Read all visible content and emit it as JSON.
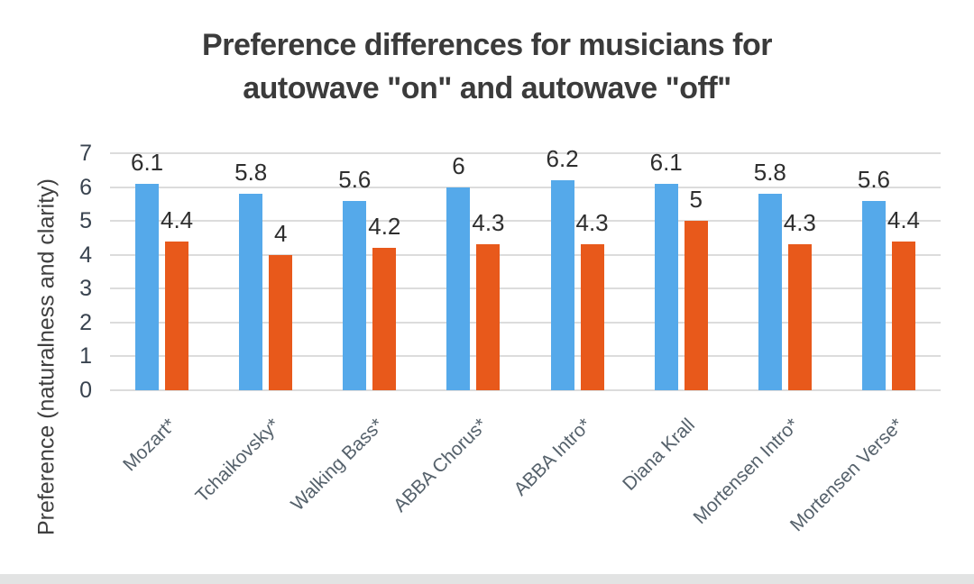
{
  "chart_title": {
    "line1": "Preference differences for musicians for",
    "line2": "autowave \"on\" and autowave \"off\""
  },
  "y_axis_label": "Preference (naturalness and clarity)",
  "chart_data": {
    "type": "bar",
    "title": "Preference differences for musicians for autowave \"on\" and autowave \"off\"",
    "xlabel": "",
    "ylabel": "Preference (naturalness and clarity)",
    "ylim": [
      0,
      7
    ],
    "yticks": [
      0,
      1,
      2,
      3,
      4,
      5,
      6,
      7
    ],
    "grid": true,
    "legend": "none",
    "data_labels": true,
    "categories": [
      "Mozart*",
      "Tchaikovsky*",
      "Walking Bass*",
      "ABBA Chorus*",
      "ABBA Intro*",
      "Diana Krall",
      "Mortensen Intro*",
      "Mortensen Verse*"
    ],
    "series": [
      {
        "name": "autowave \"on\"",
        "color": "#55A9EA",
        "values": [
          6.1,
          5.8,
          5.6,
          6,
          6.2,
          6.1,
          5.8,
          5.6
        ],
        "value_labels": [
          "6.1",
          "5.8",
          "5.6",
          "6",
          "6.2",
          "6.1",
          "5.8",
          "5.6"
        ]
      },
      {
        "name": "autowave \"off\"",
        "color": "#E8591B",
        "values": [
          4.4,
          4,
          4.2,
          4.3,
          4.3,
          5,
          4.3,
          4.4
        ],
        "value_labels": [
          "4.4",
          "4",
          "4.2",
          "4.3",
          "4.3",
          "5",
          "4.3",
          "4.4"
        ]
      }
    ]
  },
  "colors": {
    "bar_on": "#55A9EA",
    "bar_off": "#E8591B",
    "gridline": "#dcdcdc",
    "title_text": "#3b3b3b",
    "axis_tick_text": "#39434f",
    "value_label_text": "#2e2e2e",
    "category_label_text": "#55616b",
    "page_edge_strip": "#e2e3e3"
  }
}
